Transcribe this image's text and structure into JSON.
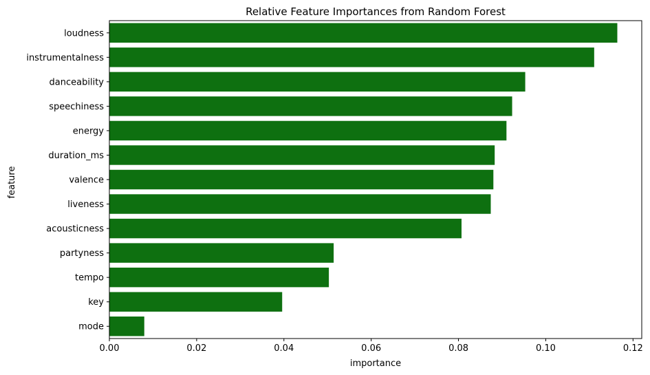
{
  "chart_data": {
    "type": "bar",
    "orientation": "horizontal",
    "title": "Relative Feature Importances from Random Forest",
    "xlabel": "importance",
    "ylabel": "feature",
    "categories": [
      "loudness",
      "instrumentalness",
      "danceability",
      "speechiness",
      "energy",
      "duration_ms",
      "valence",
      "liveness",
      "acousticness",
      "partyness",
      "tempo",
      "key",
      "mode"
    ],
    "values": [
      0.1164,
      0.1111,
      0.0953,
      0.0923,
      0.091,
      0.0883,
      0.088,
      0.0874,
      0.0807,
      0.0514,
      0.0503,
      0.0396,
      0.008
    ],
    "xlim": [
      0,
      0.122
    ],
    "xticks": [
      0,
      0.02,
      0.04,
      0.06,
      0.08,
      0.1,
      0.12
    ],
    "xtick_labels": [
      "0.00",
      "0.02",
      "0.04",
      "0.06",
      "0.08",
      "0.10",
      "0.12"
    ],
    "bar_color": "#0e7010",
    "grid": false,
    "legend": "none"
  }
}
